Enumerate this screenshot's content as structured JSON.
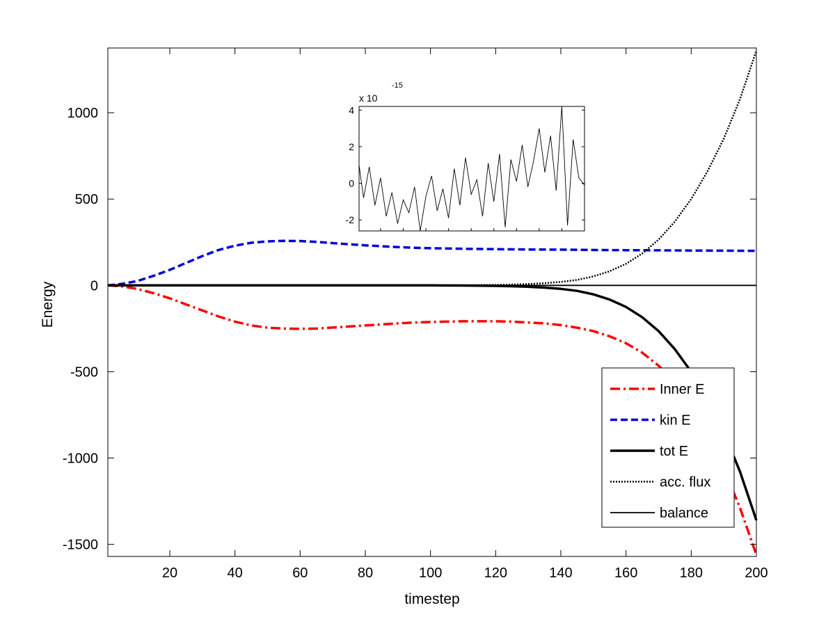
{
  "chart_data": {
    "type": "line",
    "title": "",
    "xlabel": "timestep",
    "ylabel": "Energy",
    "xlim": [
      1,
      200
    ],
    "ylim": [
      -1570,
      1375
    ],
    "xticks": [
      20,
      40,
      60,
      80,
      100,
      120,
      140,
      160,
      180,
      200
    ],
    "yticks": [
      -1500,
      -1000,
      -500,
      0,
      500,
      1000
    ],
    "legend_position": "bottom-right",
    "series": [
      {
        "name": "Inner E",
        "style": "dash-dot",
        "color": "#ff0000",
        "x": [
          1,
          5,
          10,
          15,
          20,
          25,
          30,
          35,
          40,
          45,
          50,
          55,
          60,
          65,
          70,
          75,
          80,
          85,
          90,
          95,
          100,
          105,
          110,
          115,
          120,
          125,
          130,
          135,
          140,
          145,
          150,
          155,
          160,
          165,
          170,
          175,
          180,
          185,
          190,
          195,
          200
        ],
        "y": [
          0,
          -5,
          -20,
          -45,
          -75,
          -110,
          -145,
          -180,
          -210,
          -232,
          -245,
          -250,
          -252,
          -250,
          -244,
          -238,
          -232,
          -226,
          -220,
          -215,
          -212,
          -210,
          -208,
          -208,
          -208,
          -210,
          -215,
          -220,
          -230,
          -245,
          -265,
          -295,
          -335,
          -390,
          -465,
          -560,
          -690,
          -860,
          -1060,
          -1290,
          -1560
        ]
      },
      {
        "name": "kin E",
        "style": "dashed",
        "color": "#0000dd",
        "x": [
          1,
          5,
          10,
          15,
          20,
          25,
          30,
          35,
          40,
          45,
          50,
          55,
          60,
          65,
          70,
          75,
          80,
          85,
          90,
          95,
          100,
          110,
          120,
          130,
          140,
          150,
          160,
          170,
          180,
          190,
          200
        ],
        "y": [
          0,
          8,
          25,
          55,
          90,
          130,
          170,
          205,
          230,
          247,
          255,
          258,
          257,
          252,
          245,
          238,
          232,
          227,
          222,
          218,
          215,
          212,
          210,
          208,
          207,
          205,
          204,
          203,
          202,
          201,
          200
        ]
      },
      {
        "name": "tot E",
        "style": "solid-thick",
        "color": "#000000",
        "x": [
          1,
          20,
          40,
          60,
          80,
          100,
          110,
          120,
          125,
          130,
          135,
          140,
          145,
          150,
          155,
          160,
          165,
          170,
          175,
          180,
          185,
          190,
          195,
          200
        ],
        "y": [
          0,
          0,
          0,
          0,
          0,
          0,
          -1,
          -3,
          -5,
          -8,
          -13,
          -20,
          -32,
          -52,
          -82,
          -125,
          -185,
          -265,
          -370,
          -500,
          -660,
          -850,
          -1080,
          -1360
        ]
      },
      {
        "name": "acc. flux",
        "style": "dotted",
        "color": "#000000",
        "x": [
          1,
          20,
          40,
          60,
          80,
          100,
          110,
          120,
          125,
          130,
          135,
          140,
          145,
          150,
          155,
          160,
          165,
          170,
          175,
          180,
          185,
          190,
          195,
          200
        ],
        "y": [
          0,
          0,
          0,
          0,
          0,
          0,
          1,
          3,
          5,
          8,
          13,
          20,
          32,
          52,
          82,
          125,
          185,
          265,
          370,
          500,
          660,
          850,
          1080,
          1360
        ]
      },
      {
        "name": "balance",
        "style": "solid-thin",
        "color": "#000000",
        "x": [
          1,
          200
        ],
        "y": [
          0,
          0
        ]
      }
    ],
    "inset": {
      "type": "line",
      "exponent_label": "x 10",
      "exponent": "-15",
      "xlim": [
        1,
        200
      ],
      "ylim": [
        -2.6,
        4.2
      ],
      "yticks": [
        -2,
        0,
        2,
        4
      ],
      "series": [
        {
          "name": "balance (zoomed)",
          "color": "#000000",
          "x": [
            1,
            5,
            10,
            15,
            20,
            25,
            30,
            35,
            40,
            45,
            50,
            55,
            60,
            65,
            70,
            75,
            80,
            85,
            90,
            95,
            100,
            105,
            110,
            115,
            120,
            125,
            130,
            135,
            140,
            145,
            150,
            155,
            160,
            165,
            170,
            175,
            180,
            185,
            190,
            195,
            200
          ],
          "y": [
            1.0,
            -0.8,
            0.9,
            -1.2,
            0.3,
            -1.8,
            -0.5,
            -2.2,
            -0.9,
            -1.6,
            -0.2,
            -2.6,
            -0.7,
            0.4,
            -1.5,
            -0.3,
            -1.9,
            0.8,
            -1.2,
            1.4,
            -0.6,
            0.2,
            -1.8,
            1.1,
            -1.0,
            1.6,
            -2.4,
            1.3,
            0.1,
            2.1,
            -0.2,
            1.2,
            3.0,
            0.6,
            2.6,
            -0.4,
            4.2,
            -2.3,
            2.4,
            0.3,
            -0.1
          ]
        }
      ]
    }
  }
}
